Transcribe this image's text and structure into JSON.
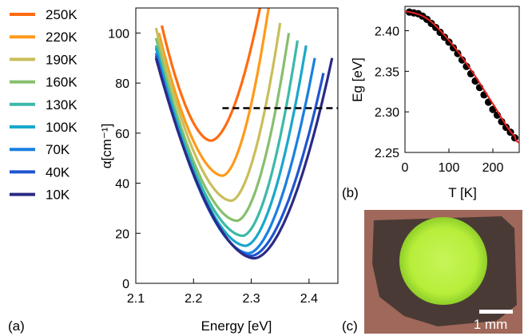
{
  "panel_labels": {
    "a": "(a)",
    "b": "(b)",
    "c": "(c)"
  },
  "photo": {
    "scale_bar_label": "1 mm",
    "colors": {
      "background": "#a0685a",
      "film": "#4a3a35",
      "spot": "#b7ee3a",
      "spot_edge": "#8fcf2a"
    }
  },
  "chart_data": [
    {
      "type": "line",
      "xlabel": "Energy [eV]",
      "ylabel": "α[cm⁻¹]",
      "xlim": [
        2.1,
        2.45
      ],
      "ylim": [
        0,
        110
      ],
      "xticks": [
        "2.1",
        "2.2",
        "2.3",
        "2.4"
      ],
      "yticks": [
        "0",
        "20",
        "40",
        "60",
        "80",
        "100"
      ],
      "legend_position": "left",
      "reference_line": {
        "style": "dashed",
        "color": "#000000",
        "y": 70,
        "x": [
          2.25,
          2.45
        ]
      },
      "series": [
        {
          "name": "250K",
          "color": "#ff6b10",
          "min_x": 2.23,
          "min_y": 57,
          "x": [
            2.145,
            2.23,
            2.315
          ],
          "y": [
            103,
            57,
            110
          ]
        },
        {
          "name": "220K",
          "color": "#ff9a1a",
          "min_x": 2.25,
          "min_y": 43,
          "x": [
            2.14,
            2.25,
            2.33
          ],
          "y": [
            100,
            43,
            110
          ]
        },
        {
          "name": "190K",
          "color": "#c9be5a",
          "min_x": 2.265,
          "min_y": 33,
          "x": [
            2.135,
            2.265,
            2.35
          ],
          "y": [
            102,
            33,
            104
          ]
        },
        {
          "name": "160K",
          "color": "#86bf6e",
          "min_x": 2.275,
          "min_y": 25,
          "x": [
            2.135,
            2.275,
            2.365
          ],
          "y": [
            98,
            25,
            100
          ]
        },
        {
          "name": "130K",
          "color": "#3cb9a8",
          "min_x": 2.285,
          "min_y": 19,
          "x": [
            2.135,
            2.285,
            2.38
          ],
          "y": [
            95,
            19,
            97
          ]
        },
        {
          "name": "100K",
          "color": "#1aa7cc",
          "min_x": 2.29,
          "min_y": 15,
          "x": [
            2.135,
            2.29,
            2.395
          ],
          "y": [
            94,
            15,
            95
          ]
        },
        {
          "name": "70K",
          "color": "#1a7fe0",
          "min_x": 2.295,
          "min_y": 12,
          "x": [
            2.135,
            2.295,
            2.41
          ],
          "y": [
            92,
            12,
            90
          ]
        },
        {
          "name": "40K",
          "color": "#1f55cf",
          "min_x": 2.3,
          "min_y": 11,
          "x": [
            2.135,
            2.3,
            2.425
          ],
          "y": [
            91,
            11,
            84
          ]
        },
        {
          "name": "10K",
          "color": "#2b2a86",
          "min_x": 2.305,
          "min_y": 10,
          "x": [
            2.135,
            2.305,
            2.44
          ],
          "y": [
            90,
            10,
            90
          ]
        }
      ]
    },
    {
      "type": "scatter",
      "xlabel": "T [K]",
      "ylabel": "Eg [eV]",
      "xlim": [
        0,
        260
      ],
      "ylim": [
        2.25,
        2.43
      ],
      "xticks": [
        "0",
        "100",
        "200"
      ],
      "yticks": [
        "2.25",
        "2.30",
        "2.35",
        "2.40"
      ],
      "series": [
        {
          "name": "data",
          "color": "#000000",
          "x": [
            10,
            20,
            30,
            40,
            50,
            60,
            70,
            80,
            90,
            100,
            110,
            120,
            130,
            140,
            150,
            160,
            170,
            180,
            190,
            200,
            210,
            220,
            230,
            240,
            250
          ],
          "y": [
            2.423,
            2.422,
            2.421,
            2.418,
            2.414,
            2.409,
            2.404,
            2.398,
            2.392,
            2.386,
            2.379,
            2.372,
            2.364,
            2.356,
            2.347,
            2.338,
            2.33,
            2.321,
            2.312,
            2.303,
            2.296,
            2.288,
            2.281,
            2.275,
            2.268
          ]
        },
        {
          "name": "fit",
          "color": "#e8201c",
          "x": [
            0,
            50,
            100,
            150,
            200,
            250,
            260
          ],
          "y": [
            2.424,
            2.415,
            2.388,
            2.352,
            2.31,
            2.27,
            2.262
          ]
        }
      ]
    }
  ]
}
